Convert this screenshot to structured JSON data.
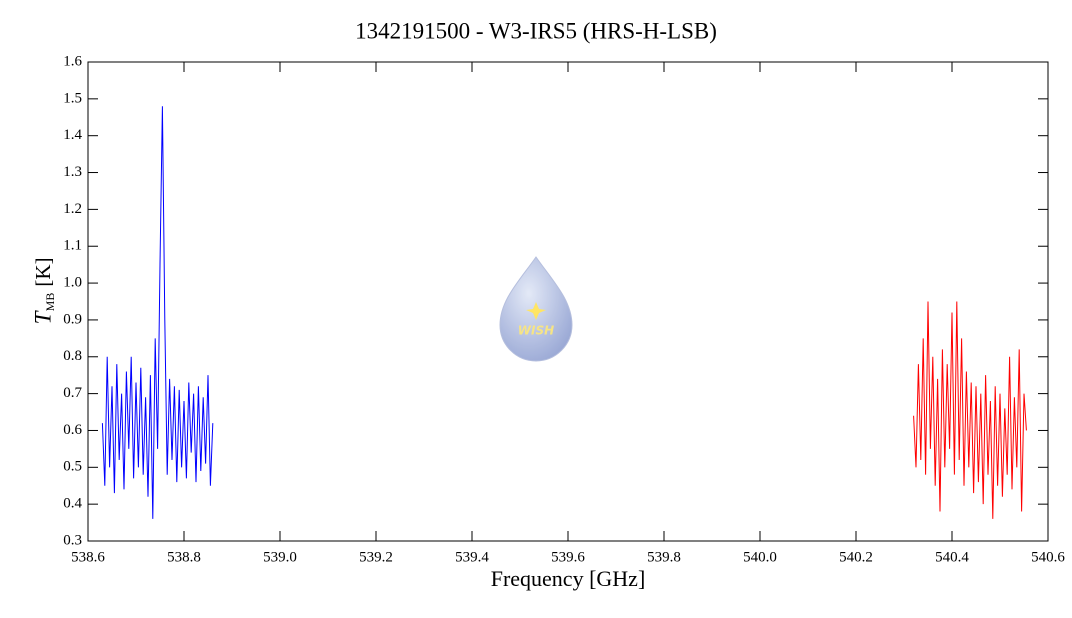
{
  "chart_data": {
    "type": "line",
    "title": "1342191500 - W3-IRS5 (HRS-H-LSB)",
    "xlabel": "Frequency [GHz]",
    "ylabel": "T",
    "ylabel_sub": "MB",
    "ylabel_unit": "[K]",
    "logo_text": "WISH",
    "xlim": [
      538.6,
      540.6
    ],
    "ylim": [
      0.3,
      1.6
    ],
    "xticks": [
      538.6,
      538.8,
      {
        "value": 539.0,
        "label": "539.0"
      },
      539.2,
      539.4,
      539.6,
      539.8,
      {
        "value": 540.0,
        "label": "540.0"
      },
      540.2,
      540.4,
      540.6
    ],
    "yticks": [
      0.3,
      0.4,
      0.5,
      0.6,
      0.7,
      0.8,
      0.9,
      {
        "value": 1.0,
        "label": "1.0"
      },
      1.1,
      1.2,
      1.3,
      1.4,
      1.5,
      1.6
    ],
    "series": [
      {
        "color": "#0000ff",
        "x": [
          538.63,
          538.635,
          538.64,
          538.645,
          538.65,
          538.655,
          538.66,
          538.665,
          538.67,
          538.675,
          538.68,
          538.685,
          538.69,
          538.695,
          538.7,
          538.705,
          538.71,
          538.715,
          538.72,
          538.725,
          538.73,
          538.735,
          538.74,
          538.745,
          538.75,
          538.755,
          538.76,
          538.765,
          538.77,
          538.775,
          538.78,
          538.785,
          538.79,
          538.795,
          538.8,
          538.805,
          538.81,
          538.815,
          538.82,
          538.825,
          538.83,
          538.835,
          538.84,
          538.845,
          538.85,
          538.855,
          538.86
        ],
        "values": [
          0.62,
          0.45,
          0.8,
          0.5,
          0.72,
          0.43,
          0.78,
          0.52,
          0.7,
          0.44,
          0.76,
          0.55,
          0.8,
          0.47,
          0.73,
          0.5,
          0.77,
          0.48,
          0.69,
          0.42,
          0.75,
          0.36,
          0.85,
          0.55,
          1.05,
          1.48,
          0.9,
          0.48,
          0.74,
          0.52,
          0.72,
          0.46,
          0.71,
          0.5,
          0.68,
          0.47,
          0.73,
          0.54,
          0.7,
          0.46,
          0.72,
          0.49,
          0.69,
          0.51,
          0.75,
          0.45,
          0.62
        ]
      },
      {
        "color": "#ff0000",
        "x": [
          540.32,
          540.325,
          540.33,
          540.335,
          540.34,
          540.345,
          540.35,
          540.355,
          540.36,
          540.365,
          540.37,
          540.375,
          540.38,
          540.385,
          540.39,
          540.395,
          540.4,
          540.405,
          540.41,
          540.415,
          540.42,
          540.425,
          540.43,
          540.435,
          540.44,
          540.445,
          540.45,
          540.455,
          540.46,
          540.465,
          540.47,
          540.475,
          540.48,
          540.485,
          540.49,
          540.495,
          540.5,
          540.505,
          540.51,
          540.515,
          540.52,
          540.525,
          540.53,
          540.535,
          540.54,
          540.545,
          540.55,
          540.555
        ],
        "values": [
          0.64,
          0.5,
          0.78,
          0.52,
          0.85,
          0.48,
          0.95,
          0.55,
          0.8,
          0.45,
          0.74,
          0.38,
          0.82,
          0.5,
          0.78,
          0.55,
          0.92,
          0.48,
          0.95,
          0.52,
          0.85,
          0.45,
          0.76,
          0.5,
          0.73,
          0.43,
          0.72,
          0.46,
          0.7,
          0.4,
          0.75,
          0.48,
          0.68,
          0.36,
          0.72,
          0.45,
          0.7,
          0.42,
          0.66,
          0.48,
          0.8,
          0.44,
          0.69,
          0.5,
          0.82,
          0.38,
          0.7,
          0.6
        ]
      }
    ]
  }
}
